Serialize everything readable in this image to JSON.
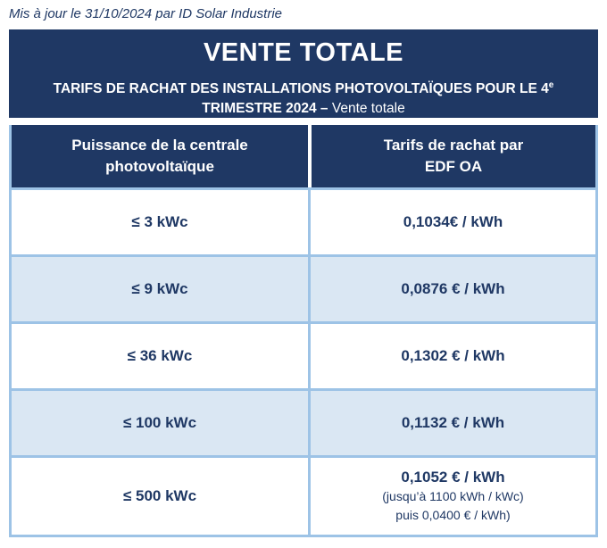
{
  "page": {
    "update_note": "Mis à jour le 31/10/2024 par ID Solar Industrie"
  },
  "colors": {
    "navy": "#1F3864",
    "row_alt_blue": "#DAE7F3",
    "border_blue": "#9DC3E6",
    "text_navy": "#1F3864",
    "white": "#FFFFFF"
  },
  "title_block": {
    "title": "VENTE TOTALE",
    "subtitle_line1": "TARIFS DE RACHAT DES INSTALLATIONS PHOTOVOLTAÏQUES POUR LE 4",
    "subtitle_superscript": "e",
    "subtitle_line2_bold": "TRIMESTRE 2024 – ",
    "subtitle_line2_regular": "Vente totale"
  },
  "table": {
    "headers": {
      "power_line1": "Puissance de la centrale",
      "power_line2": "photovoltaïque",
      "tariff_line1": "Tarifs de rachat par",
      "tariff_line2": "EDF OA"
    },
    "rows": [
      {
        "power": "≤ 3 kWc",
        "tariff": "0,1034€ / kWh"
      },
      {
        "power": "≤ 9 kWc",
        "tariff": "0,0876 € / kWh"
      },
      {
        "power": "≤ 36 kWc",
        "tariff": "0,1302 € / kWh"
      },
      {
        "power": "≤ 100 kWc",
        "tariff": "0,1132 € / kWh"
      },
      {
        "power": "≤ 500 kWc",
        "tariff": "0,1052 € / kWh",
        "note1": "(jusqu’à 1100 kWh / kWc)",
        "note2": "puis 0,0400 € / kWh)"
      }
    ]
  }
}
